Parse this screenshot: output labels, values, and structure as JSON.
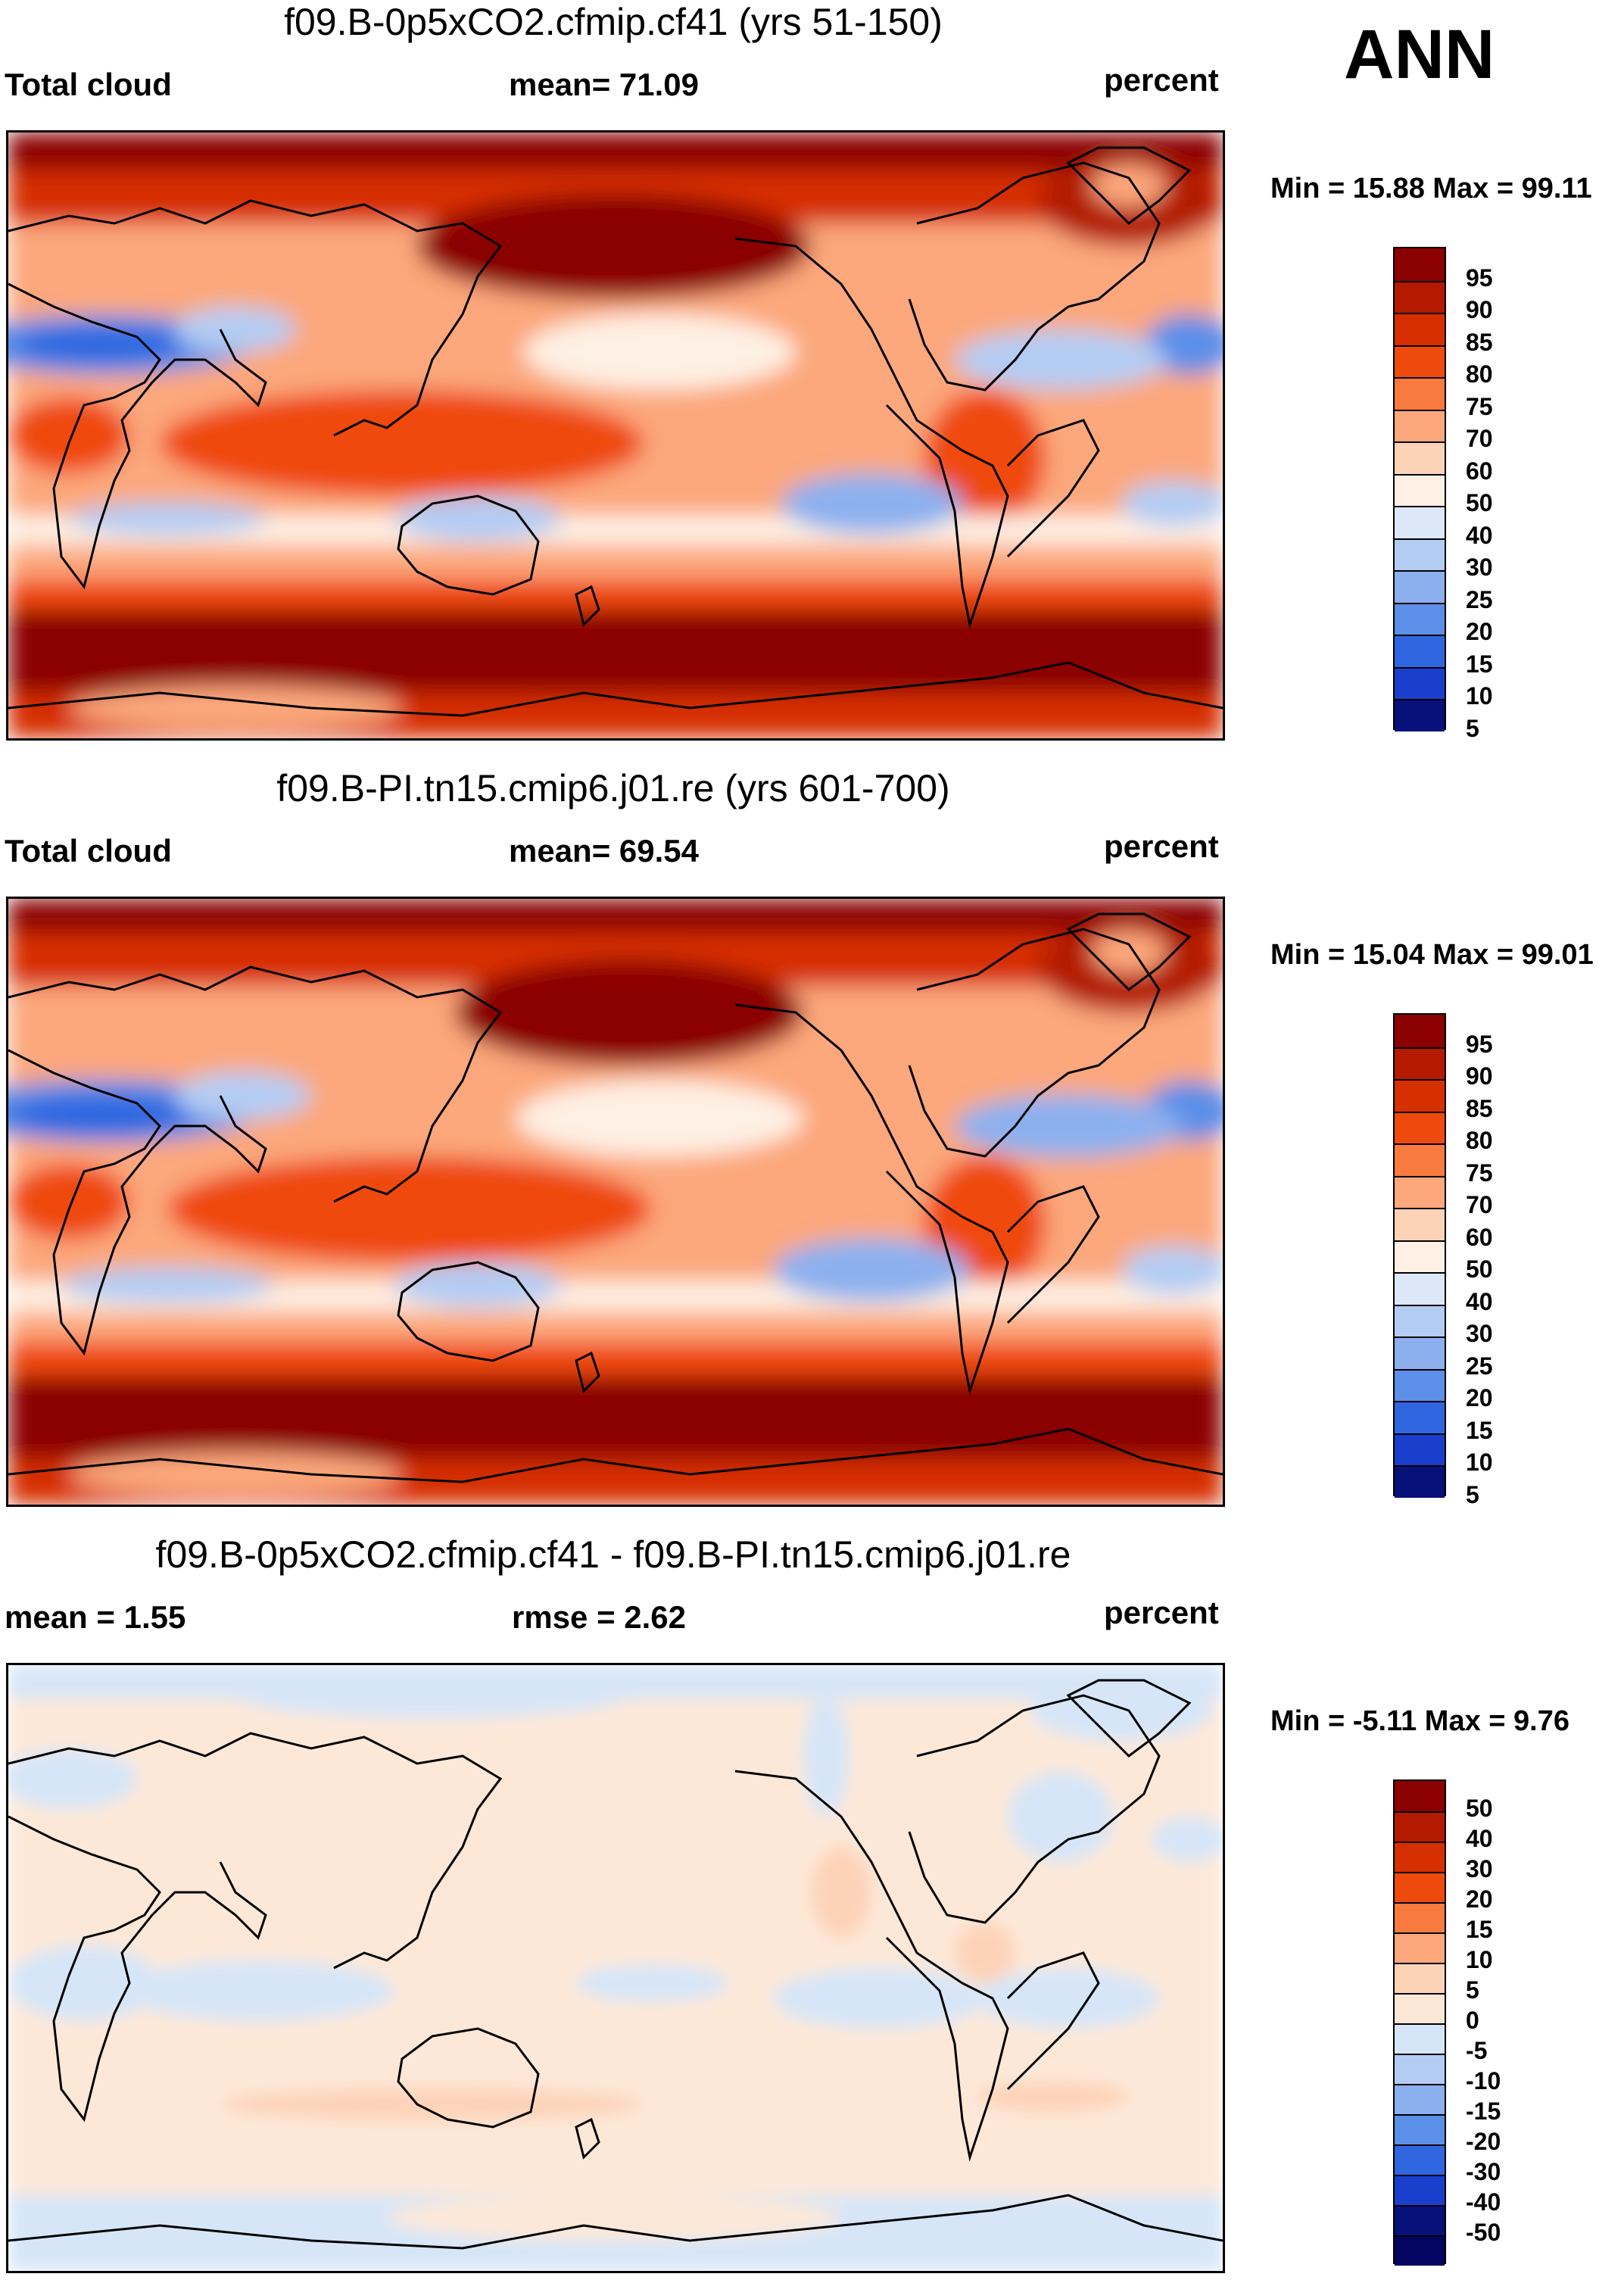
{
  "season": "ANN",
  "panels": [
    {
      "title": "f09.B-0p5xCO2.cfmip.cf41 (yrs 51-150)",
      "left_label": "Total cloud",
      "center_label": "mean=  71.09",
      "right_label": "percent",
      "minmax": "Min =  15.88 Max =  99.11",
      "colorbar": {
        "labels": [
          "95",
          "90",
          "85",
          "80",
          "75",
          "70",
          "60",
          "50",
          "40",
          "30",
          "25",
          "20",
          "15",
          "10",
          "5"
        ],
        "colors": [
          "#8b0000",
          "#b31a00",
          "#d62f00",
          "#ef4a0e",
          "#f97a3e",
          "#fca77c",
          "#fdd3b8",
          "#fef0e4",
          "#dce8f8",
          "#b3ccf3",
          "#8cb0ee",
          "#5c8fe8",
          "#2f66e0",
          "#1a3fcc",
          "#08107a"
        ]
      }
    },
    {
      "title": "f09.B-PI.tn15.cmip6.j01.re (yrs 601-700)",
      "left_label": "Total cloud",
      "center_label": "mean=  69.54",
      "right_label": "percent",
      "minmax": "Min =  15.04 Max =  99.01",
      "colorbar": {
        "labels": [
          "95",
          "90",
          "85",
          "80",
          "75",
          "70",
          "60",
          "50",
          "40",
          "30",
          "25",
          "20",
          "15",
          "10",
          "5"
        ],
        "colors": [
          "#8b0000",
          "#b31a00",
          "#d62f00",
          "#ef4a0e",
          "#f97a3e",
          "#fca77c",
          "#fdd3b8",
          "#fef0e4",
          "#dce8f8",
          "#b3ccf3",
          "#8cb0ee",
          "#5c8fe8",
          "#2f66e0",
          "#1a3fcc",
          "#08107a"
        ]
      }
    },
    {
      "title": "f09.B-0p5xCO2.cfmip.cf41 - f09.B-PI.tn15.cmip6.j01.re",
      "left_label": "mean =   1.55",
      "center_label": "rmse =   2.62",
      "right_label": "percent",
      "minmax": "Min =  -5.11 Max =   9.76",
      "colorbar": {
        "labels": [
          "50",
          "40",
          "30",
          "20",
          "15",
          "10",
          "5",
          "0",
          "-5",
          "-10",
          "-15",
          "-20",
          "-30",
          "-40",
          "-50"
        ],
        "colors": [
          "#8b0000",
          "#b31a00",
          "#d62f00",
          "#ef4a0e",
          "#f97a3e",
          "#fca77c",
          "#fdd3b8",
          "#fde8d8",
          "#d6e6f8",
          "#b3ccf3",
          "#8cb0ee",
          "#5c8fe8",
          "#2f66e0",
          "#1a3fcc",
          "#08107a",
          "#030560"
        ]
      }
    }
  ]
}
